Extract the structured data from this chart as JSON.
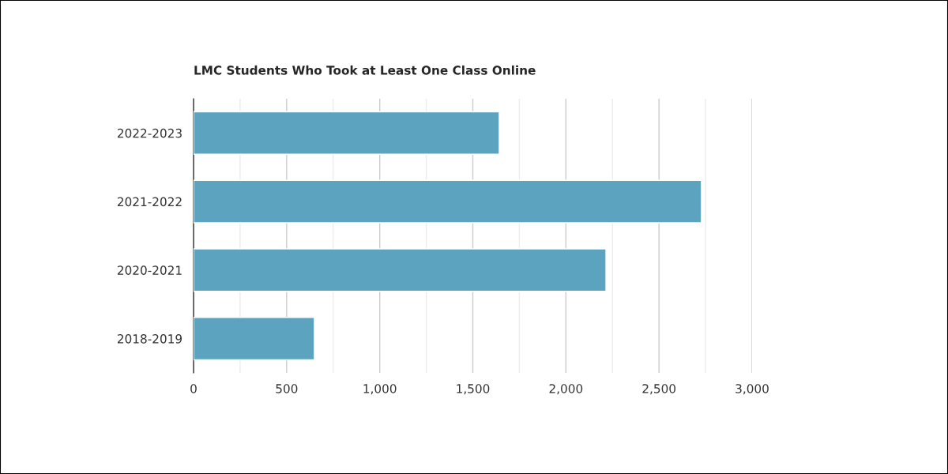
{
  "chart_data": {
    "type": "bar",
    "orientation": "horizontal",
    "title": "LMC Students Who Took at Least One Class Online",
    "categories": [
      "2022-2023",
      "2021-2022",
      "2020-2021",
      "2018-2019"
    ],
    "values": [
      1642,
      2728,
      2215,
      649
    ],
    "color": "#5ba3bf",
    "xlim": [
      0,
      3000
    ],
    "xticks": [
      0,
      {
        "value": 250,
        "label": null
      },
      {
        "value": 500,
        "label": "500"
      },
      {
        "value": 750,
        "label": null
      },
      {
        "value": 1000,
        "label": "1,000"
      },
      {
        "value": 1250,
        "label": null
      },
      {
        "value": 1500,
        "label": "1,500"
      },
      {
        "value": 1750,
        "label": null
      },
      {
        "value": 2000,
        "label": "2,000"
      },
      {
        "value": 2250,
        "label": null
      },
      {
        "value": 2500,
        "label": "2,500"
      },
      {
        "value": 2750,
        "label": null
      },
      {
        "value": 3000,
        "label": "3,000"
      }
    ],
    "grid": "x"
  }
}
